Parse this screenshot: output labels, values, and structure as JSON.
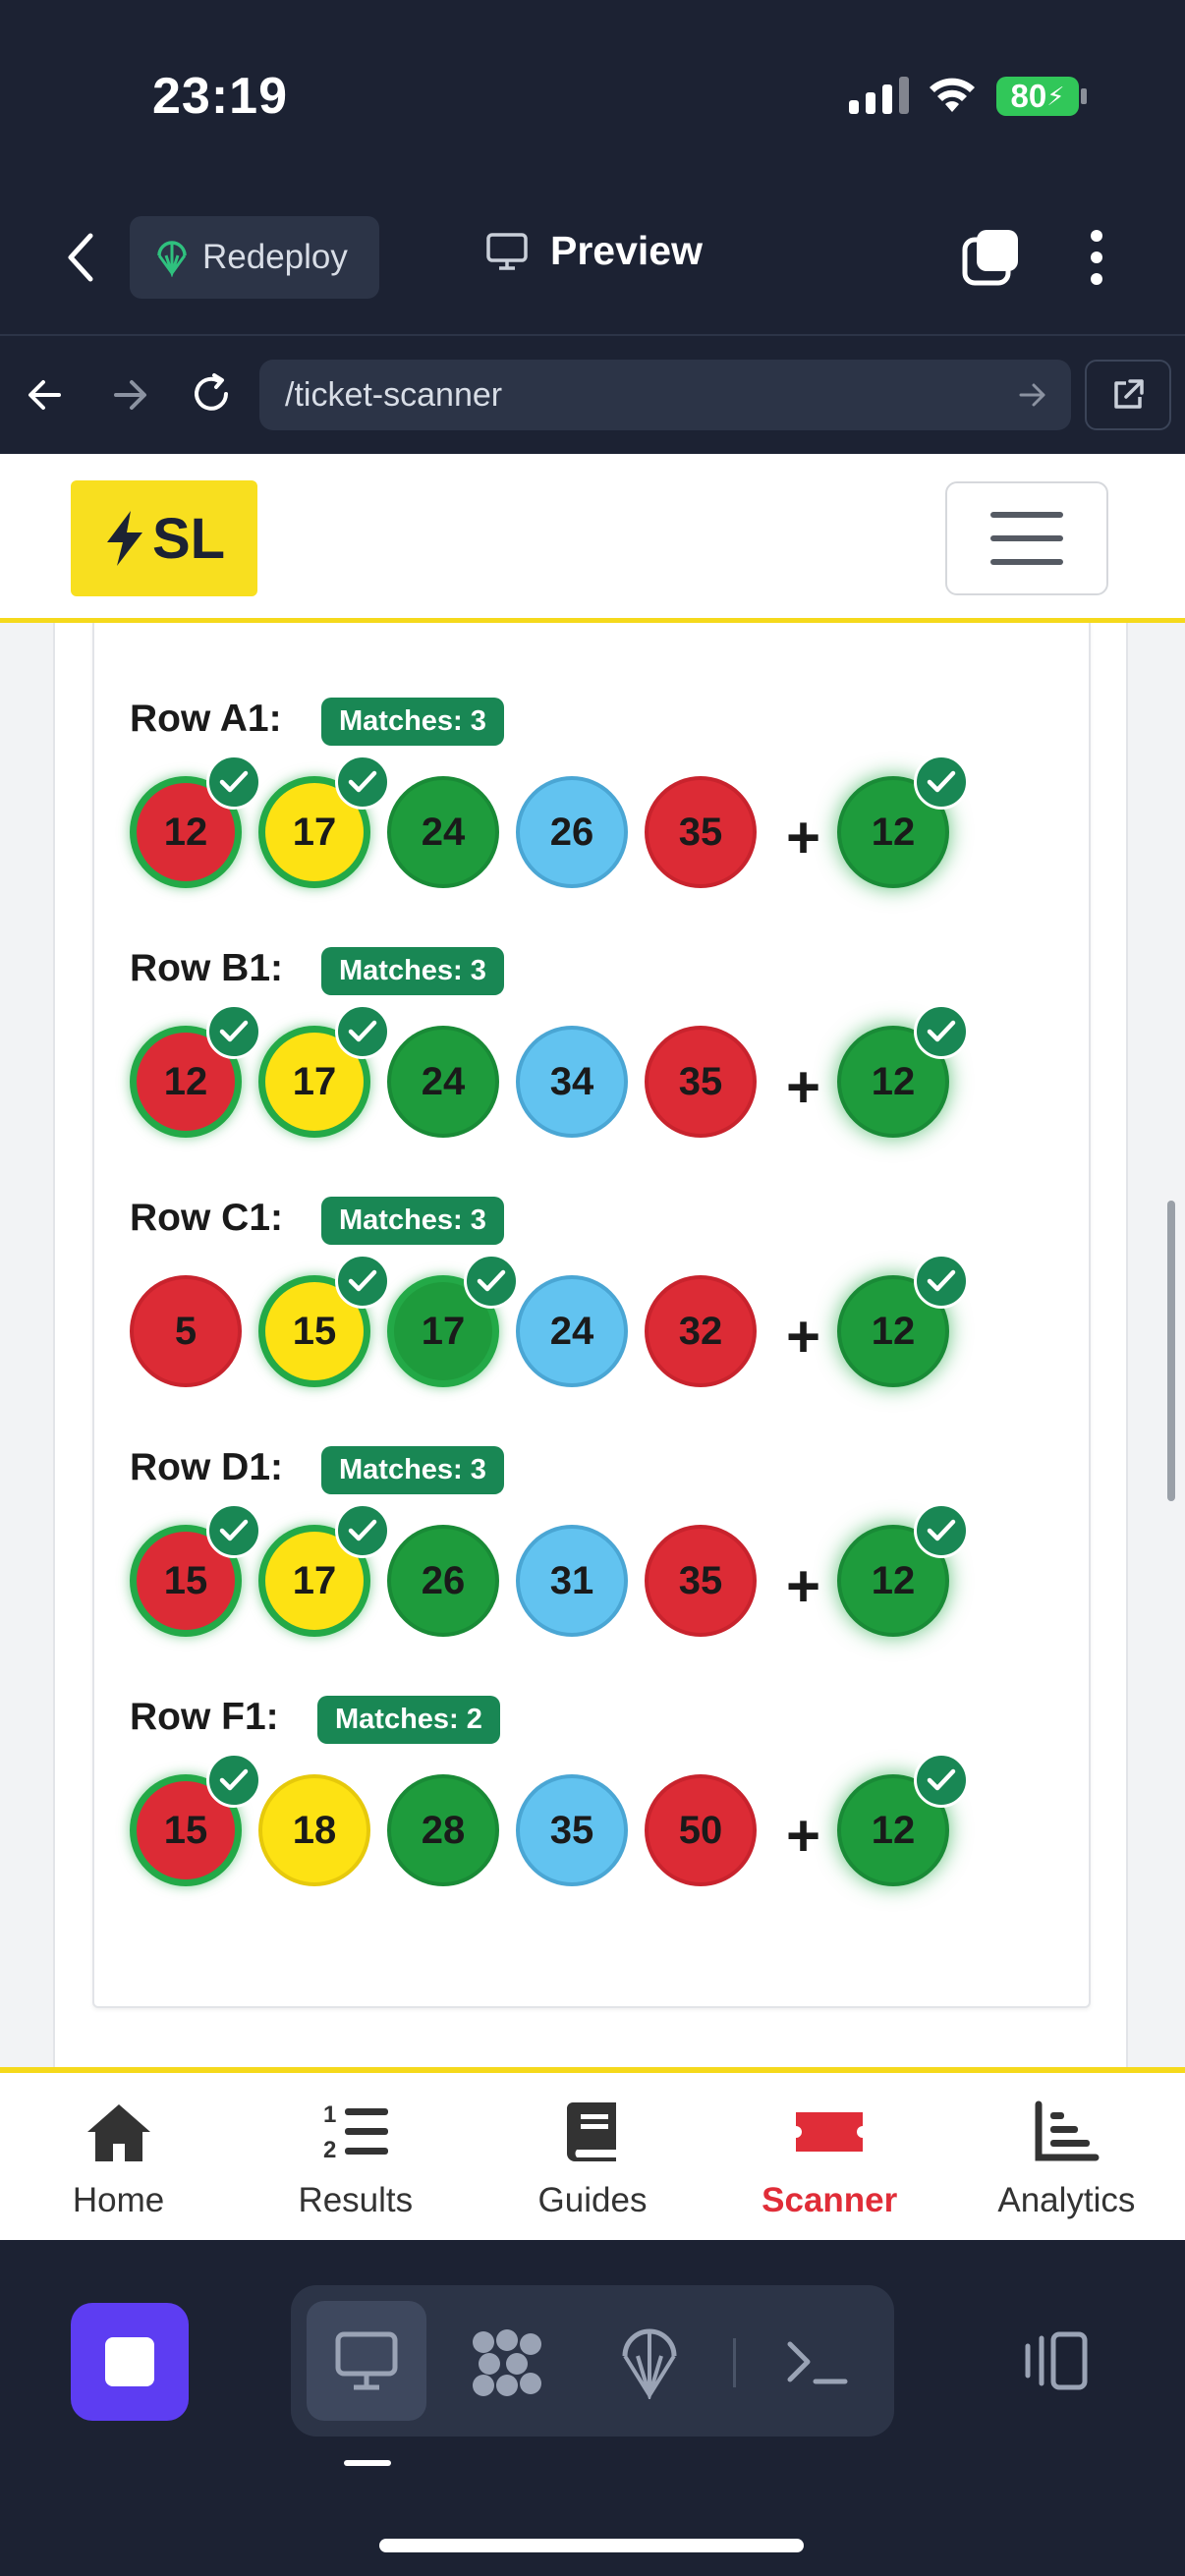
{
  "status_bar": {
    "time": "23:19",
    "battery": "80"
  },
  "top_bar": {
    "redeploy_label": "Redeploy",
    "preview_label": "Preview"
  },
  "browser": {
    "url": "/ticket-scanner"
  },
  "site": {
    "logo_text": "SL"
  },
  "rows": [
    {
      "label": "Row A1:",
      "badge": "Matches: 3",
      "numbers": [
        "12",
        "17",
        "24",
        "26",
        "35"
      ],
      "bonus": "12"
    },
    {
      "label": "Row B1:",
      "badge": "Matches: 3",
      "numbers": [
        "12",
        "17",
        "24",
        "34",
        "35"
      ],
      "bonus": "12"
    },
    {
      "label": "Row C1:",
      "badge": "Matches: 3",
      "numbers": [
        "5",
        "15",
        "17",
        "24",
        "32"
      ],
      "bonus": "12"
    },
    {
      "label": "Row D1:",
      "badge": "Matches: 3",
      "numbers": [
        "15",
        "17",
        "26",
        "31",
        "35"
      ],
      "bonus": "12"
    },
    {
      "label": "Row F1:",
      "badge": "Matches: 2",
      "numbers": [
        "15",
        "18",
        "28",
        "35",
        "50"
      ],
      "bonus": "12"
    }
  ],
  "ball_colors": [
    "red",
    "yellow",
    "green",
    "blue",
    "red"
  ],
  "matched_flags": [
    [
      true,
      true,
      false,
      false,
      false
    ],
    [
      true,
      true,
      false,
      false,
      false
    ],
    [
      false,
      true,
      true,
      false,
      false
    ],
    [
      true,
      true,
      false,
      false,
      false
    ],
    [
      true,
      false,
      false,
      false,
      false
    ]
  ],
  "plus_sign": "+",
  "tabs": [
    {
      "label": "Home",
      "icon": "home-icon",
      "active": false
    },
    {
      "label": "Results",
      "icon": "ordered-list-icon",
      "active": false
    },
    {
      "label": "Guides",
      "icon": "book-icon",
      "active": false
    },
    {
      "label": "Scanner",
      "icon": "ticket-icon",
      "active": true
    },
    {
      "label": "Analytics",
      "icon": "bar-chart-icon",
      "active": false
    }
  ],
  "colors": {
    "accent_yellow": "#f5d91c",
    "match_green": "#198754",
    "active_tab": "#e02d38",
    "dock_purple": "#5d3df2"
  }
}
